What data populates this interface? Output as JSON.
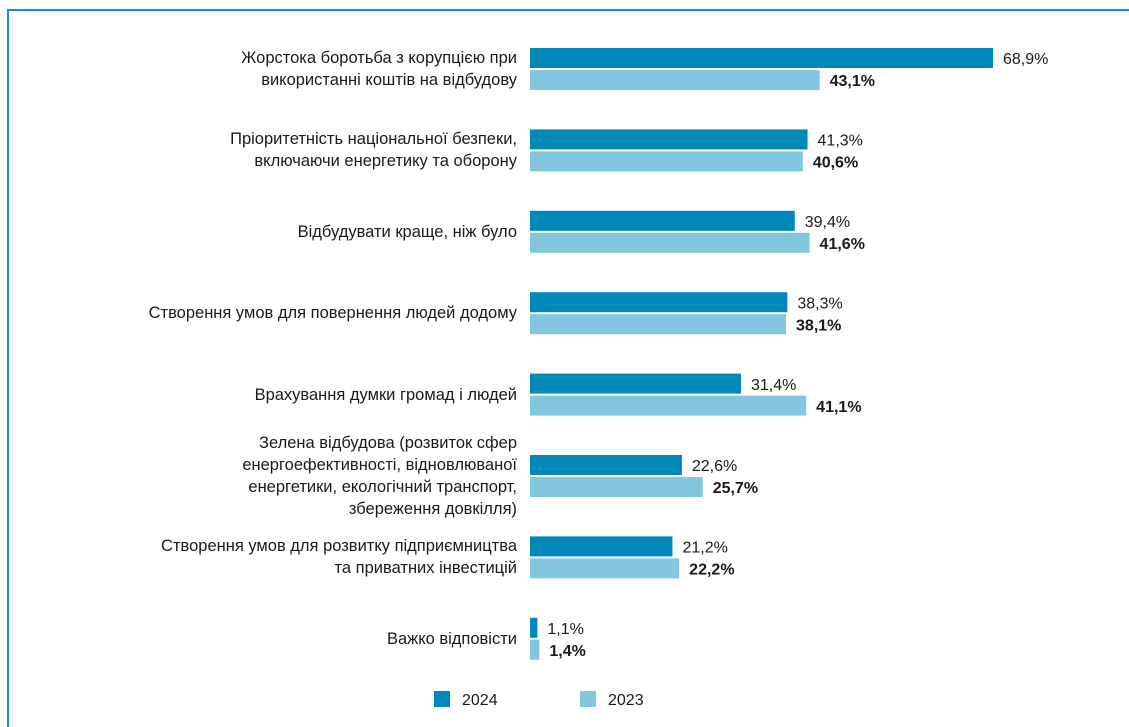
{
  "chart_data": {
    "type": "bar",
    "orientation": "horizontal",
    "categories": [
      "Жорстока боротьба з корупцією при\nвикористанні коштів на відбудову",
      "Пріоритетність національної безпеки,\nвключаючи енергетику та оборону",
      "Відбудувати краще, ніж було",
      "Створення умов для повернення людей додому",
      "Врахування думки громад і людей",
      "Зелена відбудова (розвиток сфер\nенергоефективності, відновлюваної\nенергетики, екологічний транспорт,\nзбереження довкілля)",
      "Створення умов для розвитку підприємництва\nта приватних інвестицій",
      "Важко відповісти"
    ],
    "series": [
      {
        "name": "2024",
        "color": "#0088b9",
        "values": [
          68.9,
          41.3,
          39.4,
          38.3,
          31.4,
          22.6,
          21.2,
          1.1
        ],
        "value_labels": [
          "68,9%",
          "41,3%",
          "39,4%",
          "38,3%",
          "31,4%",
          "22,6%",
          "21,2%",
          "1,1%"
        ]
      },
      {
        "name": "2023",
        "color": "#82c6e0",
        "values": [
          43.1,
          40.6,
          41.6,
          38.1,
          41.1,
          25.7,
          22.2,
          1.4
        ],
        "value_labels": [
          "43,1%",
          "40,6%",
          "41,6%",
          "38,1%",
          "41,1%",
          "25,7%",
          "22,2%",
          "1,4%"
        ]
      }
    ],
    "legend": "bottom"
  }
}
